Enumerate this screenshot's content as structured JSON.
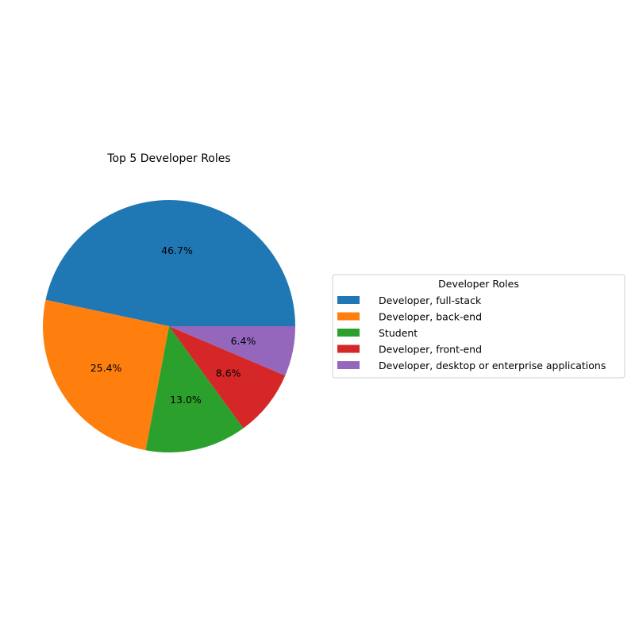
{
  "chart_data": {
    "type": "pie",
    "title": "Top 5 Developer Roles",
    "slices": [
      {
        "label": "Developer, full-stack",
        "value": 46.7,
        "pct_label": "46.7%",
        "color": "#1f77b4"
      },
      {
        "label": "Developer, back-end",
        "value": 25.4,
        "pct_label": "25.4%",
        "color": "#ff7f0e"
      },
      {
        "label": "Student",
        "value": 13.0,
        "pct_label": "13.0%",
        "color": "#2ca02c"
      },
      {
        "label": "Developer, front-end",
        "value": 8.6,
        "pct_label": "8.6%",
        "color": "#d62728"
      },
      {
        "label": "Developer, desktop or enterprise applications",
        "value": 6.4,
        "pct_label": "6.4%",
        "color": "#9467bd"
      }
    ],
    "legend": {
      "title": "Developer Roles",
      "placement": "right"
    }
  }
}
